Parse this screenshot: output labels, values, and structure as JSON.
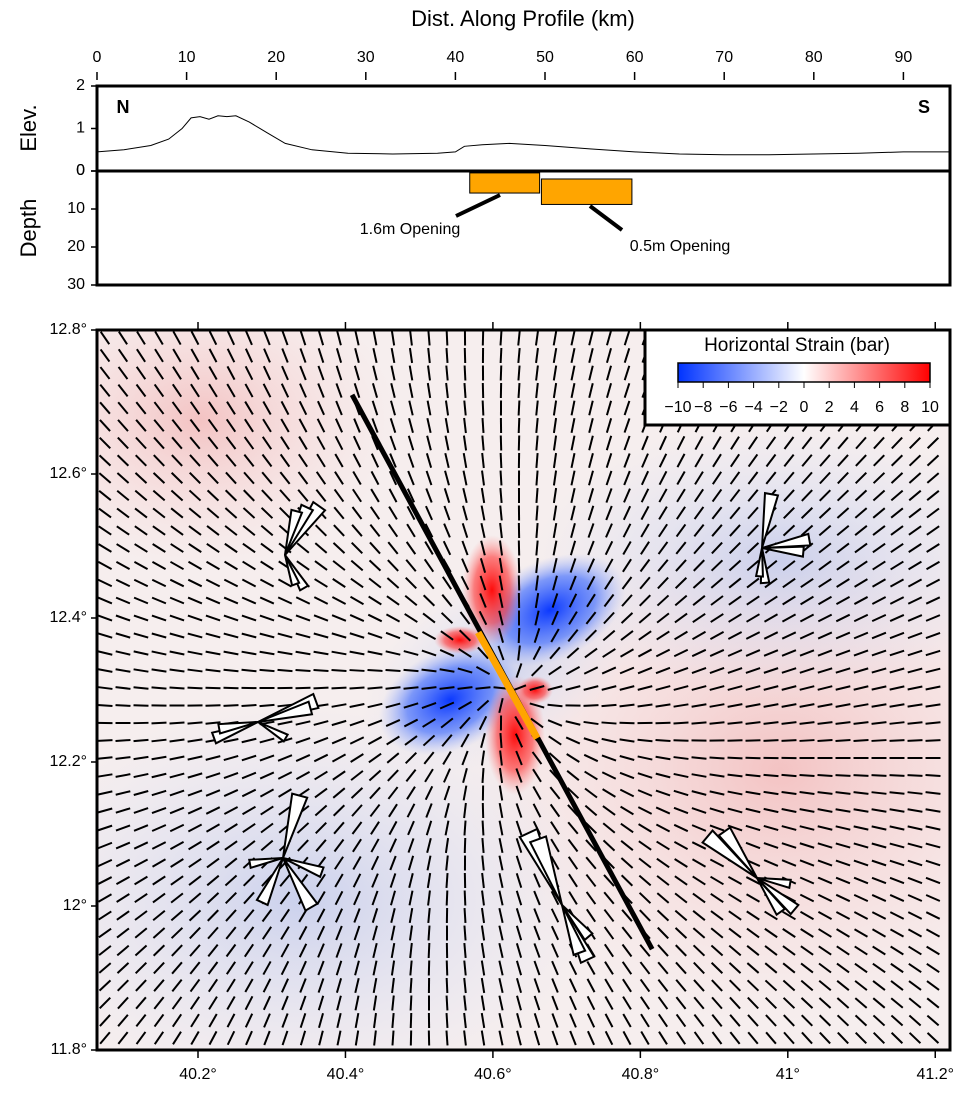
{
  "chart_data": [
    {
      "type": "line",
      "title": "Dist. Along Profile (km)",
      "ylabel": "Elev.",
      "xlim": [
        0,
        95.2
      ],
      "xticks": [
        0,
        10,
        20,
        30,
        40,
        50,
        60,
        70,
        80,
        90
      ],
      "ylim": [
        0,
        2
      ],
      "yticks": [
        0,
        1,
        2
      ],
      "color": "#000000",
      "annotations": [
        "N",
        "S"
      ],
      "x": [
        0,
        3,
        6,
        8,
        9.5,
        10.5,
        11.5,
        12.5,
        13.5,
        14.5,
        15.5,
        17,
        19,
        21,
        24,
        28,
        33,
        38,
        40,
        41,
        43,
        46,
        50,
        55,
        60,
        65,
        70,
        75,
        80,
        85,
        90,
        95.2
      ],
      "values": [
        0.45,
        0.5,
        0.6,
        0.75,
        1.0,
        1.25,
        1.28,
        1.22,
        1.3,
        1.28,
        1.3,
        1.15,
        0.9,
        0.65,
        0.5,
        0.42,
        0.4,
        0.42,
        0.45,
        0.58,
        0.62,
        0.65,
        0.6,
        0.52,
        0.45,
        0.4,
        0.38,
        0.38,
        0.4,
        0.42,
        0.45,
        0.45
      ]
    },
    {
      "type": "rect",
      "ylabel": "Depth",
      "xlim": [
        0,
        95.2
      ],
      "ylim": [
        30,
        0
      ],
      "yticks": [
        0,
        10,
        20,
        30
      ],
      "color": "#ffa500",
      "series": [
        {
          "name": "1.6m Opening",
          "x": [
            41.6,
            49.4
          ],
          "values": [
            0.5,
            5.8
          ]
        },
        {
          "name": "0.5m Opening",
          "x": [
            49.6,
            59.7
          ],
          "values": [
            2.1,
            8.8
          ]
        }
      ]
    },
    {
      "type": "map",
      "xlim": [
        40.063,
        41.22
      ],
      "ylim": [
        11.8,
        12.8
      ],
      "xticks": [
        {
          "value": 40.2,
          "label": "40.2°"
        },
        {
          "value": 40.4,
          "label": "40.4°"
        },
        {
          "value": 40.6,
          "label": "40.6°"
        },
        {
          "value": 40.8,
          "label": "40.8°"
        },
        {
          "value": 41,
          "label": "41°"
        },
        {
          "value": 41.2,
          "label": "41.2°"
        }
      ],
      "yticks": [
        {
          "value": 11.8,
          "label": "11.8°"
        },
        {
          "value": 12,
          "label": "12°"
        },
        {
          "value": 12.2,
          "label": "12.2°"
        },
        {
          "value": 12.4,
          "label": "12.4°"
        },
        {
          "value": 12.6,
          "label": "12.6°"
        },
        {
          "value": 12.8,
          "label": "12.8°"
        }
      ],
      "colorbar": {
        "title": "Horizontal Strain (bar)",
        "lim": [
          -10,
          10
        ],
        "ticks": [
          {
            "value": -10,
            "label": "−10"
          },
          {
            "value": -8,
            "label": "−8"
          },
          {
            "value": -6,
            "label": "−6"
          },
          {
            "value": -4,
            "label": "−4"
          },
          {
            "value": -2,
            "label": "−2"
          },
          0,
          2,
          4,
          6,
          8,
          10
        ],
        "colors": [
          "#0033ff",
          "#ffffff",
          "#ff0000"
        ]
      },
      "fault": {
        "x": [
          40.409,
          40.816
        ],
        "values": [
          12.71,
          11.94
        ],
        "color": "#000000"
      },
      "dike": {
        "x": [
          40.58,
          40.66
        ],
        "values": [
          12.38,
          12.233
        ],
        "color": "#ffa500"
      }
    }
  ]
}
